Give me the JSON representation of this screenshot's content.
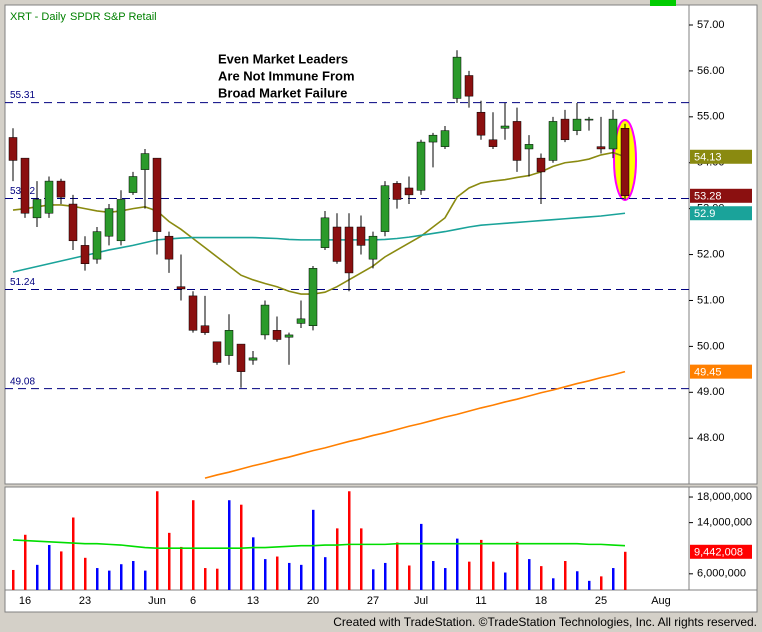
{
  "chart_data": [
    {
      "type": "candlestick",
      "title": "XRT - Daily",
      "subtitle": "SPDR S&P Retail",
      "annotation": [
        "Even Market Leaders",
        "Are Not Immune From",
        "Broad Market Failure"
      ],
      "open": [
        54.55,
        54.1,
        52.8,
        52.9,
        53.6,
        53.1,
        52.2,
        51.9,
        52.4,
        52.3,
        53.35,
        53.85,
        54.1,
        52.4,
        51.3,
        51.1,
        50.45,
        50.1,
        49.8,
        50.05,
        49.7,
        50.25,
        50.35,
        50.2,
        50.5,
        50.45,
        52.15,
        52.6,
        52.6,
        52.6,
        51.9,
        52.5,
        53.55,
        53.45,
        53.4,
        54.45,
        54.35,
        55.4,
        55.9,
        55.1,
        54.5,
        54.75,
        54.9,
        54.3,
        54.1,
        54.05,
        54.95,
        54.7,
        54.95,
        54.35,
        54.3,
        54.75,
        null,
        null,
        null
      ],
      "high": [
        54.75,
        54.1,
        53.6,
        53.7,
        53.65,
        53.3,
        52.4,
        52.6,
        53.1,
        53.4,
        53.8,
        54.3,
        54.1,
        52.5,
        52.0,
        51.2,
        51.1,
        50.1,
        50.7,
        50.05,
        49.9,
        51.0,
        50.65,
        50.3,
        51.0,
        51.75,
        52.95,
        52.9,
        52.9,
        52.85,
        52.5,
        53.6,
        53.6,
        53.7,
        54.5,
        54.65,
        54.8,
        56.45,
        56.0,
        55.35,
        55.1,
        55.3,
        55.2,
        54.6,
        54.2,
        55.0,
        55.15,
        55.3,
        55.0,
        55.0,
        55.15,
        54.85,
        null,
        null,
        null
      ],
      "low": [
        53.6,
        52.8,
        52.6,
        52.8,
        53.1,
        52.1,
        51.65,
        51.8,
        52.2,
        52.2,
        53.3,
        53.0,
        52.0,
        51.6,
        51.0,
        50.3,
        50.25,
        49.6,
        49.6,
        49.1,
        49.6,
        50.15,
        50.1,
        49.6,
        50.4,
        50.35,
        52.1,
        51.8,
        51.2,
        52.0,
        51.7,
        52.4,
        53.0,
        53.1,
        53.3,
        53.9,
        54.3,
        55.3,
        55.2,
        54.5,
        54.3,
        54.5,
        53.8,
        53.7,
        53.1,
        54.0,
        54.45,
        54.6,
        54.7,
        54.2,
        54.1,
        53.2,
        null,
        null,
        null
      ],
      "close": [
        54.05,
        52.9,
        53.2,
        53.6,
        53.25,
        52.3,
        51.8,
        52.5,
        53.0,
        53.2,
        53.7,
        54.2,
        52.5,
        51.9,
        51.25,
        50.35,
        50.3,
        49.65,
        50.35,
        49.45,
        49.75,
        50.9,
        50.15,
        50.25,
        50.6,
        51.7,
        52.8,
        51.85,
        51.6,
        52.2,
        52.4,
        53.5,
        53.2,
        53.3,
        54.45,
        54.6,
        54.7,
        56.3,
        55.45,
        54.6,
        54.35,
        54.8,
        54.05,
        54.4,
        53.8,
        54.9,
        54.5,
        54.95,
        54.95,
        54.3,
        54.95,
        53.28,
        null,
        null,
        null
      ],
      "up_color": "#2b9a2b",
      "down_color": "#8b1010",
      "series": [
        {
          "color": "#8a8a10",
          "values": [
            52.97,
            53.0,
            53.04,
            53.08,
            53.08,
            53.05,
            53.0,
            52.95,
            52.92,
            52.95,
            53.0,
            53.04,
            52.95,
            52.72,
            52.55,
            52.35,
            52.15,
            51.95,
            51.75,
            51.55,
            51.45,
            51.37,
            51.3,
            51.2,
            51.14,
            51.14,
            51.18,
            51.3,
            51.45,
            51.6,
            51.75,
            51.95,
            52.1,
            52.25,
            52.4,
            52.6,
            52.8,
            53.25,
            53.45,
            53.56,
            53.6,
            53.63,
            53.68,
            53.72,
            53.8,
            53.92,
            54.0,
            54.03,
            54.08,
            54.17,
            54.22,
            54.13,
            null,
            null,
            null
          ]
        },
        {
          "color": "#1aa39a",
          "values": [
            51.62,
            51.68,
            51.74,
            51.8,
            51.86,
            51.92,
            51.98,
            52.04,
            52.1,
            52.15,
            52.2,
            52.26,
            52.32,
            52.34,
            52.36,
            52.37,
            52.37,
            52.37,
            52.37,
            52.37,
            52.37,
            52.36,
            52.35,
            52.33,
            52.32,
            52.32,
            52.32,
            52.32,
            52.32,
            52.32,
            52.32,
            52.33,
            52.35,
            52.38,
            52.42,
            52.46,
            52.5,
            52.55,
            52.6,
            52.64,
            52.66,
            52.68,
            52.7,
            52.72,
            52.74,
            52.76,
            52.78,
            52.8,
            52.82,
            52.84,
            52.87,
            52.9,
            null,
            null,
            null
          ]
        },
        {
          "color": "#ff7f00",
          "values": [
            null,
            null,
            null,
            null,
            null,
            null,
            null,
            null,
            null,
            null,
            null,
            null,
            null,
            null,
            null,
            null,
            47.13,
            47.2,
            47.26,
            47.33,
            47.4,
            47.46,
            47.53,
            47.59,
            47.66,
            47.73,
            47.79,
            47.86,
            47.93,
            47.99,
            48.06,
            48.12,
            48.19,
            48.26,
            48.32,
            48.39,
            48.46,
            48.52,
            48.59,
            48.66,
            48.72,
            48.79,
            48.85,
            48.92,
            48.99,
            49.05,
            49.12,
            49.19,
            49.25,
            49.32,
            49.38,
            49.45,
            null,
            null,
            null
          ]
        }
      ],
      "reference_lines": [
        55.31,
        53.22,
        51.24,
        49.08
      ],
      "reference_color": "#000080",
      "ylim": [
        47.09,
        57.37
      ],
      "yticks": [
        {
          "value": 48,
          "label": "48.00"
        },
        {
          "value": 49,
          "label": "49.00"
        },
        {
          "value": 50,
          "label": "50.00"
        },
        {
          "value": 51,
          "label": "51.00"
        },
        {
          "value": 52,
          "label": "52.00"
        },
        {
          "value": 53,
          "label": "53.00"
        },
        {
          "value": 54,
          "label": "54.00"
        },
        {
          "value": 55,
          "label": "55.00"
        },
        {
          "value": 56,
          "label": "56.00"
        },
        {
          "value": 57,
          "label": "57.00"
        }
      ]
    },
    {
      "type": "bar",
      "categories": [
        null,
        "16",
        null,
        null,
        null,
        null,
        "23",
        null,
        null,
        null,
        null,
        null,
        "Jun",
        null,
        null,
        "6",
        null,
        null,
        null,
        null,
        "13",
        null,
        null,
        null,
        null,
        "20",
        null,
        null,
        null,
        null,
        "27",
        null,
        null,
        null,
        "Jul",
        null,
        null,
        null,
        null,
        "11",
        null,
        null,
        null,
        null,
        "18",
        null,
        null,
        null,
        null,
        "25",
        null,
        null,
        null,
        null,
        "Aug"
      ],
      "values": [
        6600000,
        12100000,
        7400000,
        10500000,
        9500000,
        14800000,
        8500000,
        6900000,
        6500000,
        7500000,
        8000000,
        6500000,
        18900000,
        12400000,
        10200000,
        17500000,
        6900000,
        6800000,
        17500000,
        16800000,
        11700000,
        8300000,
        8700000,
        7700000,
        7400000,
        16000000,
        8600000,
        13100000,
        18900000,
        13100000,
        6700000,
        7700000,
        10900000,
        7300000,
        13800000,
        8000000,
        6900000,
        11500000,
        7900000,
        11300000,
        7900000,
        6200000,
        11000000,
        8300000,
        7200000,
        5300000,
        8000000,
        6400000,
        4900000,
        5600000,
        6900000,
        9442008,
        null,
        null,
        null
      ],
      "value_labels": [
        null,
        null,
        null,
        null,
        null,
        null,
        null,
        null,
        null,
        null,
        null,
        null,
        null,
        null,
        null,
        null,
        null,
        null,
        null,
        null,
        null,
        null,
        null,
        null,
        null,
        null,
        null,
        null,
        null,
        null,
        null,
        null,
        null,
        null,
        null,
        null,
        null,
        null,
        null,
        null,
        null,
        null,
        null,
        null,
        null,
        null,
        null,
        null,
        null,
        null,
        null,
        "9,442,008",
        null,
        null,
        null
      ],
      "up_color": "#0000ff",
      "down_color": "#ff0000",
      "series": [
        {
          "color": "#00dd00",
          "values": [
            11300000,
            11200000,
            11100000,
            11000000,
            10900000,
            10800000,
            10700000,
            10700000,
            10600000,
            10500000,
            10300000,
            10100000,
            10000000,
            10000000,
            10000000,
            10000000,
            10000000,
            10000000,
            10000000,
            10000000,
            10100000,
            10100000,
            10200000,
            10300000,
            10400000,
            10400000,
            10500000,
            10500000,
            10600000,
            10600000,
            10600000,
            10600000,
            10700000,
            10700000,
            10700000,
            10700000,
            10700000,
            10700000,
            10700000,
            10700000,
            10700000,
            10700000,
            10700000,
            10700000,
            10700000,
            10700000,
            10700000,
            10700000,
            10600000,
            10600000,
            10500000,
            10400000,
            null,
            null,
            null
          ]
        }
      ],
      "ylim": [
        3470000,
        19410000
      ],
      "yticks": [
        {
          "value": 6000000,
          "label": "6,000,000"
        },
        {
          "value": 14000000,
          "label": "14,000,000"
        },
        {
          "value": 18000000,
          "label": "18,000,000"
        }
      ]
    }
  ],
  "footer": "Created with TradeStation. ©TradeStation Technologies, Inc. All rights reserved."
}
